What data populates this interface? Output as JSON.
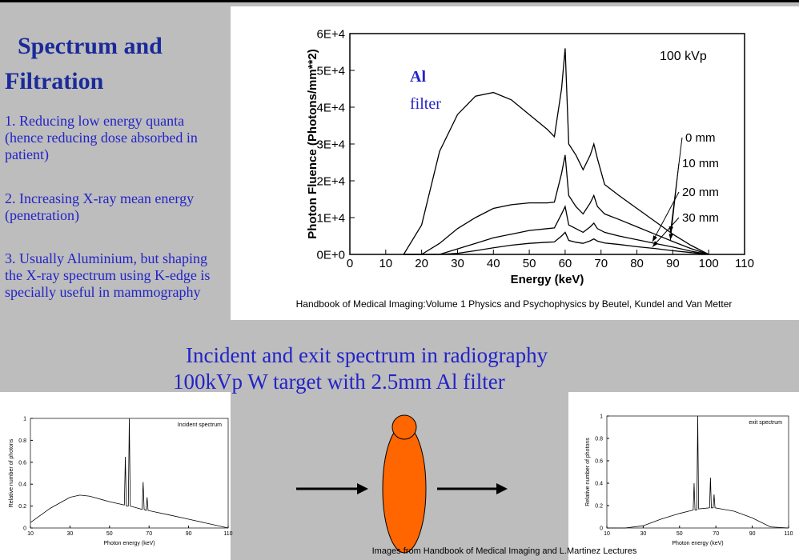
{
  "slide": {
    "title_lines": [
      "Spectrum  and",
      "Filtration"
    ],
    "points": [
      "1. Reducing low energy quanta (hence reducing dose absorbed in patient)",
      "2. Increasing X-ray mean energy (penetration)",
      "3. Usually Aluminium, but shaping the X-ray spectrum using K-edge is specially useful in mammography"
    ],
    "heading_lines": [
      "Incident and exit spectrum in radiography",
      "100kVp W target with 2.5mm Al filter"
    ],
    "bottom_caption": "Images from Handbook of Medical Imaging and  L.Martinez Lectures"
  },
  "chart_data": [
    {
      "type": "line",
      "xlabel": "Energy (keV)",
      "ylabel": "Photon Fluence (Photons/mm**2)",
      "caption": "Handbook of Medical Imaging:Volume 1 Physics and Psychophysics by  Beutel, Kundel and Van Metter",
      "annotations": [
        "100 kVp",
        "Al",
        "filter"
      ],
      "x": [
        15,
        20,
        25,
        30,
        35,
        40,
        45,
        50,
        55,
        57,
        59,
        60,
        61,
        63,
        65,
        67,
        68,
        69,
        71,
        75,
        80,
        85,
        90,
        95,
        100
      ],
      "series": [
        {
          "name": "0 mm",
          "color": "#000000",
          "values": [
            0,
            8000,
            28000,
            38000,
            43000,
            44000,
            42000,
            38000,
            34000,
            32000,
            45000,
            56000,
            30000,
            27000,
            23000,
            27000,
            30000,
            26000,
            19000,
            16000,
            12500,
            9000,
            5500,
            2500,
            0
          ]
        },
        {
          "name": "10 mm",
          "color": "#000000",
          "values": [
            0,
            0,
            3000,
            7000,
            10000,
            12500,
            13500,
            14000,
            14000,
            14200,
            22000,
            27000,
            16000,
            13000,
            11000,
            14000,
            16000,
            13000,
            11000,
            9500,
            7500,
            5500,
            3500,
            1600,
            0
          ]
        },
        {
          "name": "20 mm",
          "color": "#000000",
          "values": [
            0,
            0,
            0,
            1500,
            3000,
            4500,
            5500,
            6500,
            7000,
            7200,
            11000,
            13000,
            8000,
            7000,
            6000,
            7500,
            8500,
            7000,
            6000,
            5000,
            4000,
            3000,
            2000,
            900,
            0
          ]
        },
        {
          "name": "30 mm",
          "color": "#000000",
          "values": [
            0,
            0,
            0,
            300,
            1000,
            1800,
            2500,
            3000,
            3300,
            3400,
            5000,
            6000,
            3800,
            3300,
            3000,
            3700,
            4200,
            3600,
            3100,
            2700,
            2100,
            1600,
            1000,
            500,
            0
          ]
        }
      ],
      "xlim": [
        0,
        110
      ],
      "xticks": [
        0,
        10,
        20,
        30,
        40,
        50,
        60,
        70,
        80,
        90,
        100,
        110
      ],
      "ylim": [
        0,
        60000
      ],
      "yticks": [
        {
          "value": 0,
          "label": "0E+0"
        },
        {
          "value": 10000,
          "label": "1E+4"
        },
        {
          "value": 20000,
          "label": "2E+4"
        },
        {
          "value": 30000,
          "label": "3E+4"
        },
        {
          "value": 40000,
          "label": "4E+4"
        },
        {
          "value": 50000,
          "label": "5E+4"
        },
        {
          "value": 60000,
          "label": "6E+4"
        }
      ]
    },
    {
      "type": "line",
      "title": "Incident spectrum",
      "xlabel": "Photon energy (keV)",
      "ylabel": "Relative number of photons",
      "x": [
        10,
        20,
        30,
        35,
        40,
        50,
        57.5,
        58,
        58.5,
        59.5,
        60,
        60.5,
        66.5,
        67,
        67.5,
        68.5,
        69,
        69.5,
        80,
        90,
        100,
        110
      ],
      "series": [
        {
          "name": "Incident spectrum",
          "color": "#000000",
          "values": [
            0.05,
            0.18,
            0.28,
            0.3,
            0.29,
            0.24,
            0.21,
            0.65,
            0.2,
            0.2,
            1.0,
            0.2,
            0.17,
            0.42,
            0.17,
            0.16,
            0.28,
            0.16,
            0.12,
            0.08,
            0.04,
            0
          ]
        }
      ],
      "xlim": [
        10,
        110
      ],
      "xticks": [
        10,
        30,
        50,
        70,
        90,
        110
      ],
      "ylim": [
        0,
        1
      ],
      "yticks": [
        0,
        0.2,
        0.4,
        0.6,
        0.8,
        1
      ]
    },
    {
      "type": "line",
      "title": "exit spectrum",
      "xlabel": "Photon energy (keV)",
      "ylabel": "Relative number of photons",
      "x": [
        10,
        20,
        30,
        35,
        40,
        50,
        57.5,
        58,
        58.5,
        59.5,
        60,
        60.5,
        66.5,
        67,
        67.5,
        68.5,
        69,
        69.5,
        80,
        90,
        100,
        110
      ],
      "series": [
        {
          "name": "exit spectrum",
          "color": "#000000",
          "values": [
            0,
            0,
            0.02,
            0.05,
            0.08,
            0.13,
            0.16,
            0.4,
            0.16,
            0.16,
            1.0,
            0.17,
            0.18,
            0.45,
            0.18,
            0.18,
            0.3,
            0.18,
            0.15,
            0.09,
            0.01,
            0
          ]
        }
      ],
      "xlim": [
        10,
        110
      ],
      "xticks": [
        10,
        30,
        50,
        70,
        90,
        110
      ],
      "ylim": [
        0,
        1
      ],
      "yticks": [
        0,
        0.2,
        0.4,
        0.6,
        0.8,
        1
      ]
    }
  ]
}
